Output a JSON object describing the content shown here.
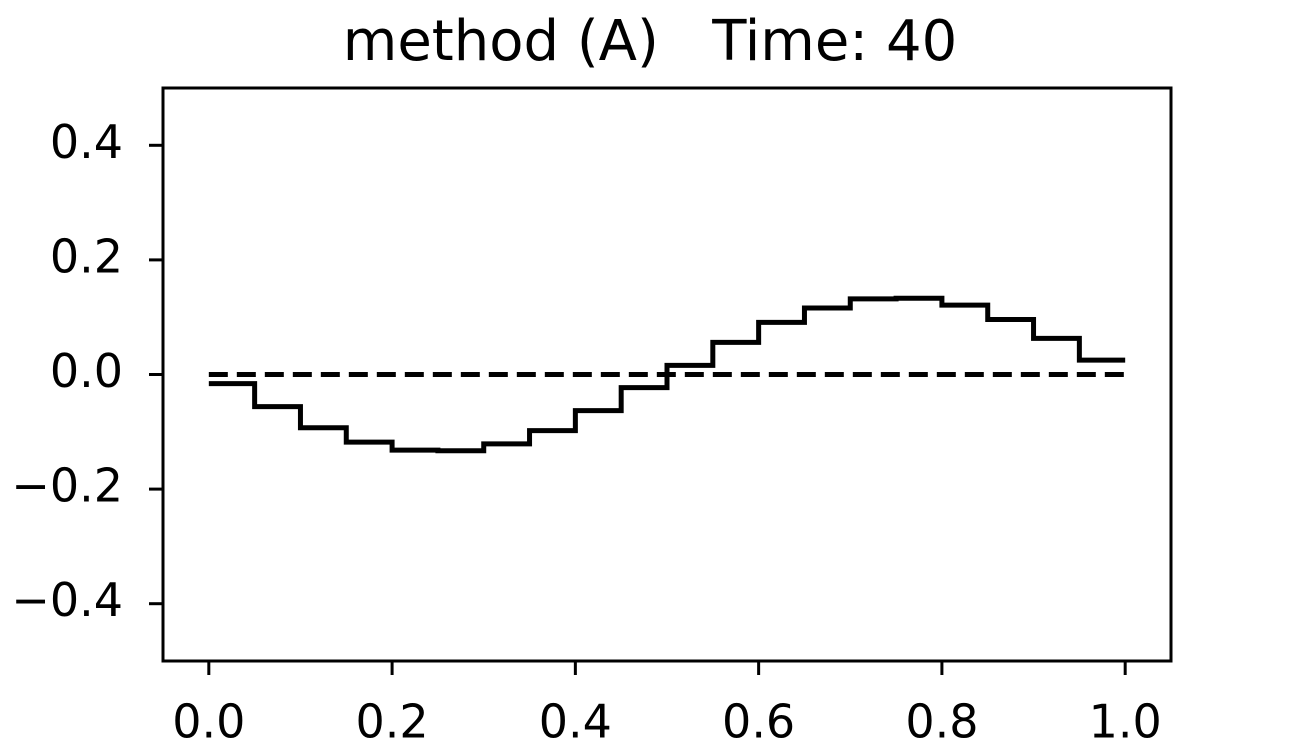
{
  "chart_data": {
    "type": "line",
    "title": "method (A)   Time: 40",
    "xlim": [
      -0.05,
      1.05
    ],
    "ylim": [
      -0.5,
      0.5
    ],
    "xticks": [
      {
        "value": 0,
        "label": "0.0"
      },
      0.2,
      0.4,
      0.6,
      0.8,
      {
        "value": 1,
        "label": "1.0"
      }
    ],
    "yticks": [
      {
        "value": -0.4,
        "label": "−0.4"
      },
      {
        "value": -0.2,
        "label": "−0.2"
      },
      {
        "value": 0,
        "label": "0.0"
      },
      0.2,
      0.4
    ],
    "series": [
      {
        "color": "#000000",
        "style": "solid",
        "step": "post",
        "x": [
          0,
          0.05,
          0.1,
          0.15,
          0.2,
          0.25,
          0.3,
          0.35,
          0.4,
          0.45,
          0.5,
          0.55,
          0.6,
          0.65,
          0.7,
          0.75,
          0.8,
          0.85,
          0.9,
          0.95,
          1
        ],
        "values": [
          -0.016,
          -0.056,
          -0.093,
          -0.118,
          -0.132,
          -0.133,
          -0.121,
          -0.098,
          -0.063,
          -0.023,
          0.016,
          0.056,
          0.091,
          0.116,
          0.132,
          0.133,
          0.121,
          0.096,
          0.063,
          0.025,
          0.025
        ]
      },
      {
        "color": "#000000",
        "style": "dashed",
        "x": [
          0,
          1
        ],
        "values": [
          0,
          0
        ]
      }
    ]
  }
}
